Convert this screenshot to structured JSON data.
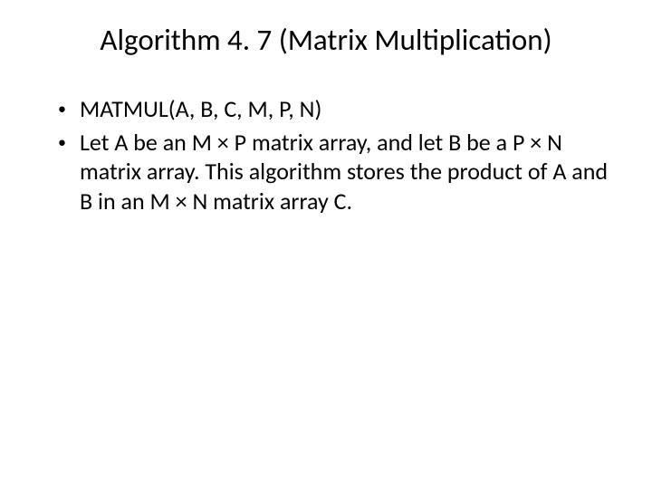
{
  "slide": {
    "title": "Algorithm 4. 7 (Matrix Multiplication)",
    "bullets": [
      "MATMUL(A, B, C, M, P, N)",
      "Let A be an M × P matrix array, and let B be a P × N matrix array.  This algorithm stores the product of A and B in an M × N matrix array C."
    ],
    "bullet_marker": "•"
  },
  "style": {
    "background_color": "#ffffff",
    "text_color": "#000000",
    "title_fontsize": 33,
    "body_fontsize": 26,
    "font_family": "Calibri"
  }
}
